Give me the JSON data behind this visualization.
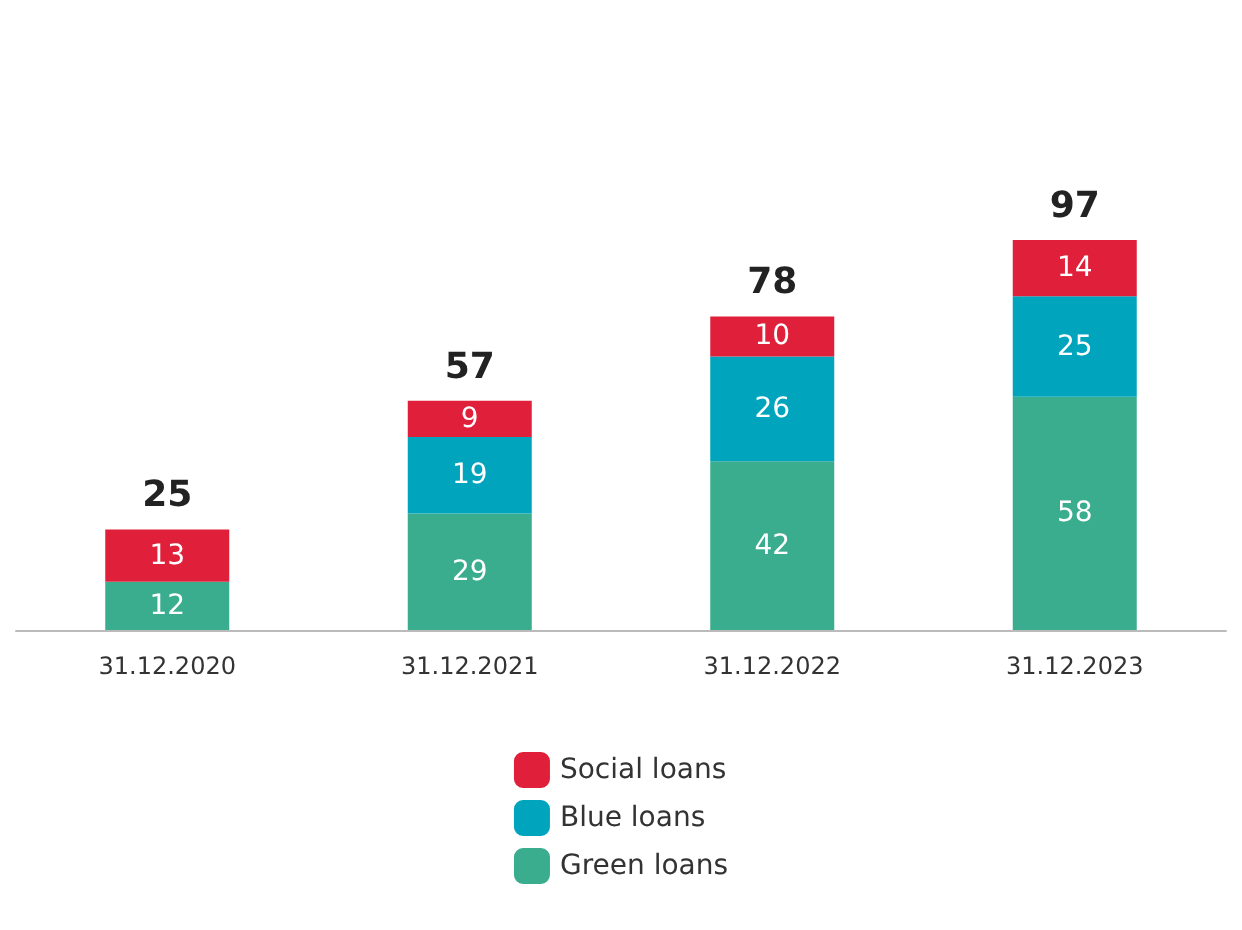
{
  "chart_data": {
    "type": "bar",
    "stacked": true,
    "categories": [
      "31.12.2020",
      "31.12.2021",
      "31.12.2022",
      "31.12.2023"
    ],
    "series": [
      {
        "name": "Green loans",
        "color": "#3aad8e",
        "values": [
          12,
          29,
          42,
          58
        ]
      },
      {
        "name": "Blue loans",
        "color": "#00a5bd",
        "values": [
          null,
          19,
          26,
          25
        ]
      },
      {
        "name": "Social loans",
        "color": "#e0203a",
        "values": [
          13,
          9,
          10,
          14
        ]
      }
    ],
    "totals": [
      "25",
      "57",
      "78",
      "97"
    ],
    "data_labels": true,
    "legend": "bottom"
  }
}
